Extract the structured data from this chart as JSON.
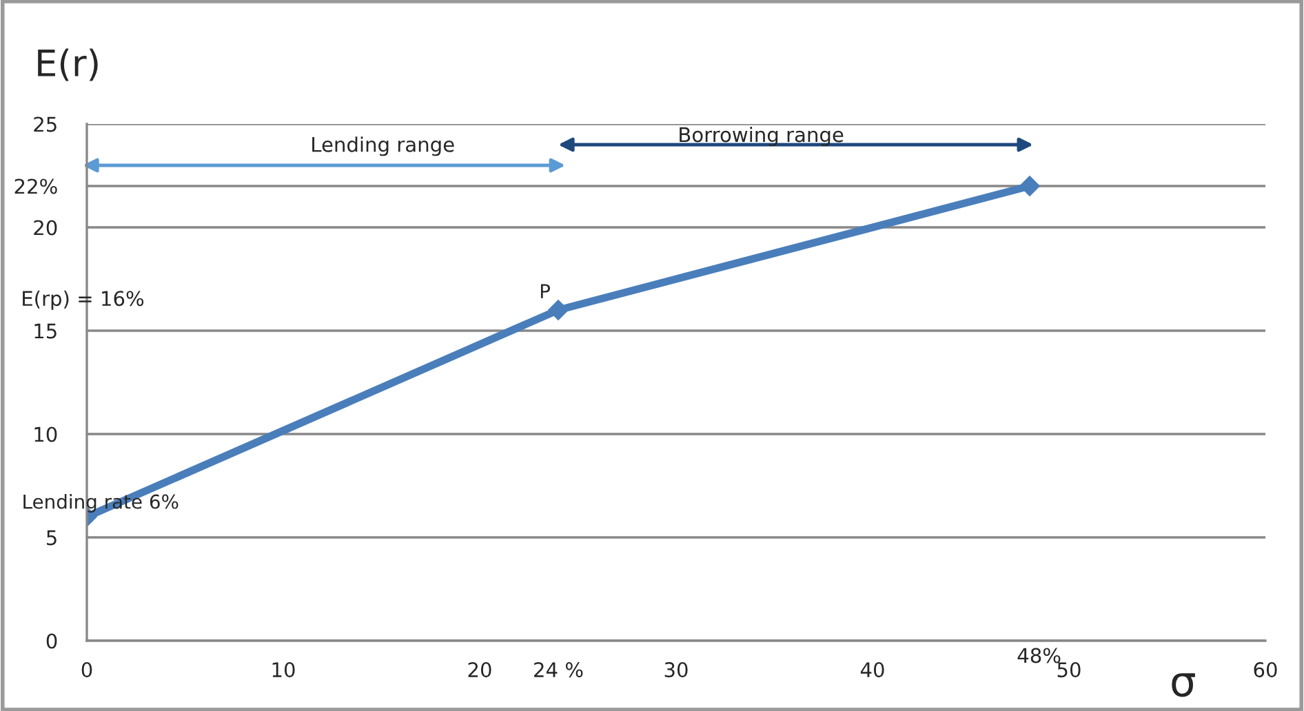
{
  "chart_data": {
    "type": "line",
    "xlabel": "σ",
    "ylabel": "E(r)",
    "x": [
      0,
      24,
      48
    ],
    "series": [
      {
        "color": "#4a7ebb",
        "values": [
          6,
          16,
          22
        ]
      }
    ],
    "marker": "diamond",
    "grid": "y",
    "xlim": [
      0,
      60
    ],
    "xticks": [
      0,
      10,
      20,
      {
        "value": 24,
        "label": "24 %"
      },
      30,
      40,
      50,
      60
    ],
    "ylim": [
      0,
      25
    ],
    "yticks": [
      0,
      5,
      10,
      15,
      20,
      {
        "value": 22,
        "label": "22%"
      },
      25
    ],
    "annotations": [
      "Lending range",
      "Borrowing range",
      "E(rp) = 16%",
      "48%",
      {
        "text": "P",
        "x": 24,
        "y": 16
      },
      {
        "text": "Lending rate 6%",
        "x": 0,
        "y": 6
      }
    ]
  }
}
